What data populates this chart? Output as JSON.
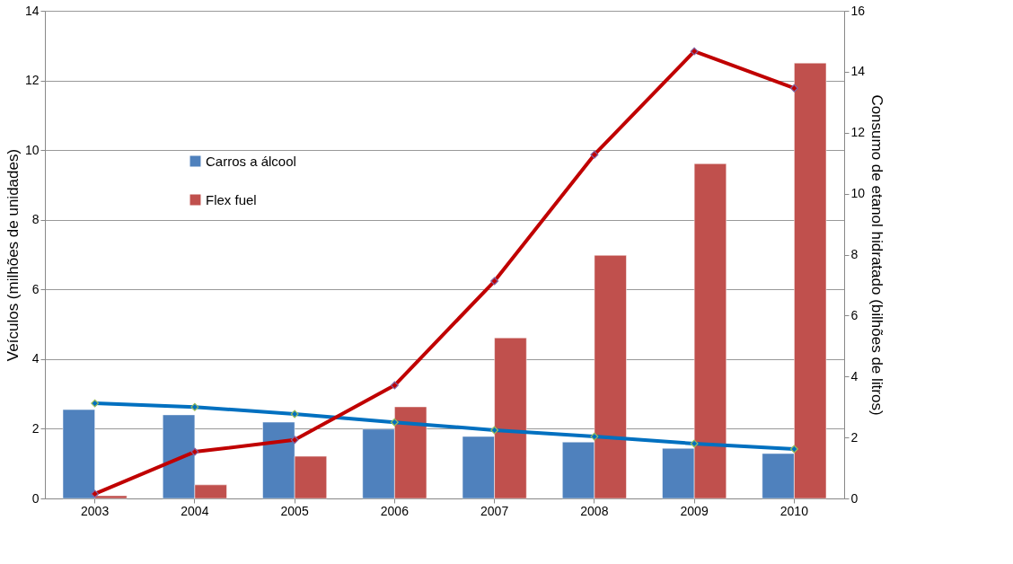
{
  "chart_data": {
    "type": "bar",
    "ylabel": "Veículos (milhões de unidades)",
    "y2label": "Consumo de etanol hidratado (bilhões de litros)",
    "categories": [
      "2003",
      "2004",
      "2005",
      "2006",
      "2007",
      "2008",
      "2009",
      "2010"
    ],
    "series": [
      {
        "name": "Carros a álcool",
        "color": "#4f81bd",
        "values": [
          2.55,
          2.4,
          2.19,
          1.99,
          1.78,
          1.62,
          1.44,
          1.29
        ]
      },
      {
        "name": "Flex fuel",
        "color": "#c0504d",
        "values": [
          0.08,
          0.39,
          1.21,
          2.63,
          4.61,
          6.98,
          9.61,
          12.5
        ]
      },
      {
        "type": "line",
        "axis": "y2",
        "color": "#0070c0",
        "marker": "diamond",
        "values": [
          3.12,
          3.0,
          2.77,
          2.5,
          2.24,
          2.03,
          1.8,
          1.62
        ]
      },
      {
        "type": "line",
        "axis": "y2",
        "color": "#c00000",
        "marker": "diamond",
        "values": [
          0.15,
          1.53,
          1.92,
          3.71,
          7.13,
          11.28,
          14.67,
          13.46
        ]
      }
    ],
    "ylim": [
      0,
      14
    ],
    "yticks": [
      0,
      2,
      4,
      6,
      8,
      10,
      12,
      14
    ],
    "y2lim": [
      0,
      16
    ],
    "y2ticks": [
      0,
      2,
      4,
      6,
      8,
      10,
      12,
      14,
      16
    ],
    "grid": "y",
    "legend": "top left"
  }
}
